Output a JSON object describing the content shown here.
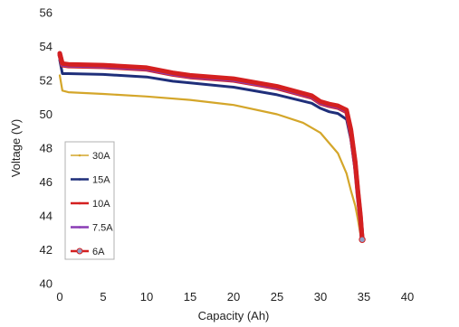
{
  "chart_data": {
    "type": "line",
    "title": "",
    "xlabel": "Capacity (Ah)",
    "ylabel": "Voltage (V)",
    "xlim": [
      0,
      40
    ],
    "ylim": [
      40,
      56
    ],
    "xticks": [
      "0",
      "5",
      "10",
      "15",
      "20",
      "25",
      "30",
      "35",
      "40"
    ],
    "yticks": [
      "40",
      "42",
      "44",
      "46",
      "48",
      "50",
      "52",
      "54",
      "56"
    ],
    "grid": false,
    "legend_position": "bottom-left",
    "series": [
      {
        "name": "30A",
        "color": "#d4a62a",
        "x": [
          0,
          0.3,
          1,
          5,
          10,
          15,
          20,
          25,
          28,
          30,
          32,
          33,
          33.5,
          34,
          34.3,
          34.5,
          34.7
        ],
        "y": [
          52.3,
          51.4,
          51.3,
          51.2,
          51.05,
          50.85,
          50.55,
          50.0,
          49.5,
          48.9,
          47.7,
          46.5,
          45.5,
          44.6,
          43.8,
          43.2,
          42.6
        ]
      },
      {
        "name": "15A",
        "color": "#1f2f7a",
        "x": [
          0,
          0.3,
          1,
          5,
          10,
          13,
          15,
          20,
          25,
          29,
          30,
          31,
          32,
          33,
          33.5,
          34,
          34.3,
          34.6,
          34.8
        ],
        "y": [
          53.2,
          52.4,
          52.4,
          52.35,
          52.2,
          51.95,
          51.85,
          51.6,
          51.15,
          50.65,
          50.35,
          50.15,
          50.05,
          49.7,
          48.5,
          46.6,
          45.0,
          43.6,
          42.6
        ]
      },
      {
        "name": "10A",
        "color": "#d42020",
        "x": [
          0,
          0.3,
          1,
          5,
          10,
          13,
          15,
          20,
          25,
          29,
          30,
          31,
          32,
          33,
          33.5,
          34,
          34.3,
          34.6,
          34.8
        ],
        "y": [
          53.5,
          52.9,
          52.85,
          52.8,
          52.65,
          52.35,
          52.2,
          52.0,
          51.55,
          51.0,
          50.65,
          50.5,
          50.4,
          50.15,
          48.9,
          47.0,
          45.3,
          43.8,
          42.6
        ]
      },
      {
        "name": "7.5A",
        "color": "#8a3db5",
        "x": [
          0,
          0.3,
          1,
          5,
          10,
          13,
          15,
          20,
          25,
          29,
          30,
          31,
          32,
          33,
          33.5,
          34,
          34.3,
          34.6,
          34.8
        ],
        "y": [
          53.6,
          52.95,
          52.9,
          52.85,
          52.7,
          52.4,
          52.25,
          52.05,
          51.6,
          51.05,
          50.7,
          50.55,
          50.45,
          50.2,
          49.0,
          47.1,
          45.4,
          43.9,
          42.6
        ]
      },
      {
        "name": "6A",
        "color": "#d42020",
        "marker": "circle",
        "x": [
          0,
          0.3,
          1,
          5,
          10,
          13,
          15,
          20,
          25,
          29,
          30,
          31,
          32,
          33,
          33.5,
          34,
          34.3,
          34.6,
          34.8
        ],
        "y": [
          53.6,
          53.0,
          52.95,
          52.9,
          52.75,
          52.45,
          52.3,
          52.1,
          51.65,
          51.1,
          50.75,
          50.6,
          50.5,
          50.25,
          49.1,
          47.2,
          45.5,
          44.0,
          42.6
        ]
      }
    ]
  }
}
